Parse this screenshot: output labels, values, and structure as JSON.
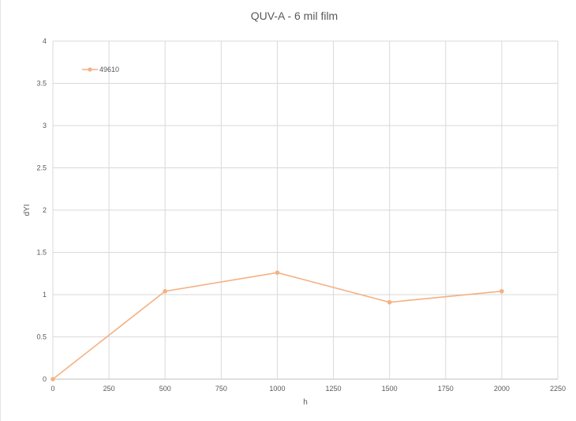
{
  "chart_data": {
    "type": "line",
    "title": "QUV-A - 6 mil film",
    "xlabel": "h",
    "ylabel": "dYI",
    "xlim": [
      0,
      2250
    ],
    "ylim": [
      0,
      4
    ],
    "x_ticks": [
      0,
      250,
      500,
      750,
      1000,
      1250,
      1500,
      1750,
      2000,
      2250
    ],
    "y_ticks": [
      "0",
      "0.5",
      "1",
      "1.5",
      "2",
      "2.5",
      "3",
      "3.5",
      "4"
    ],
    "y_tick_values": [
      0,
      0.5,
      1,
      1.5,
      2,
      2.5,
      3,
      3.5,
      4
    ],
    "grid": true,
    "legend_position": "top-left",
    "series": [
      {
        "name": "49610",
        "color": "#f4b183",
        "x": [
          0,
          500,
          1000,
          1500,
          2000
        ],
        "y": [
          0,
          1.04,
          1.26,
          0.91,
          1.04
        ]
      }
    ]
  }
}
